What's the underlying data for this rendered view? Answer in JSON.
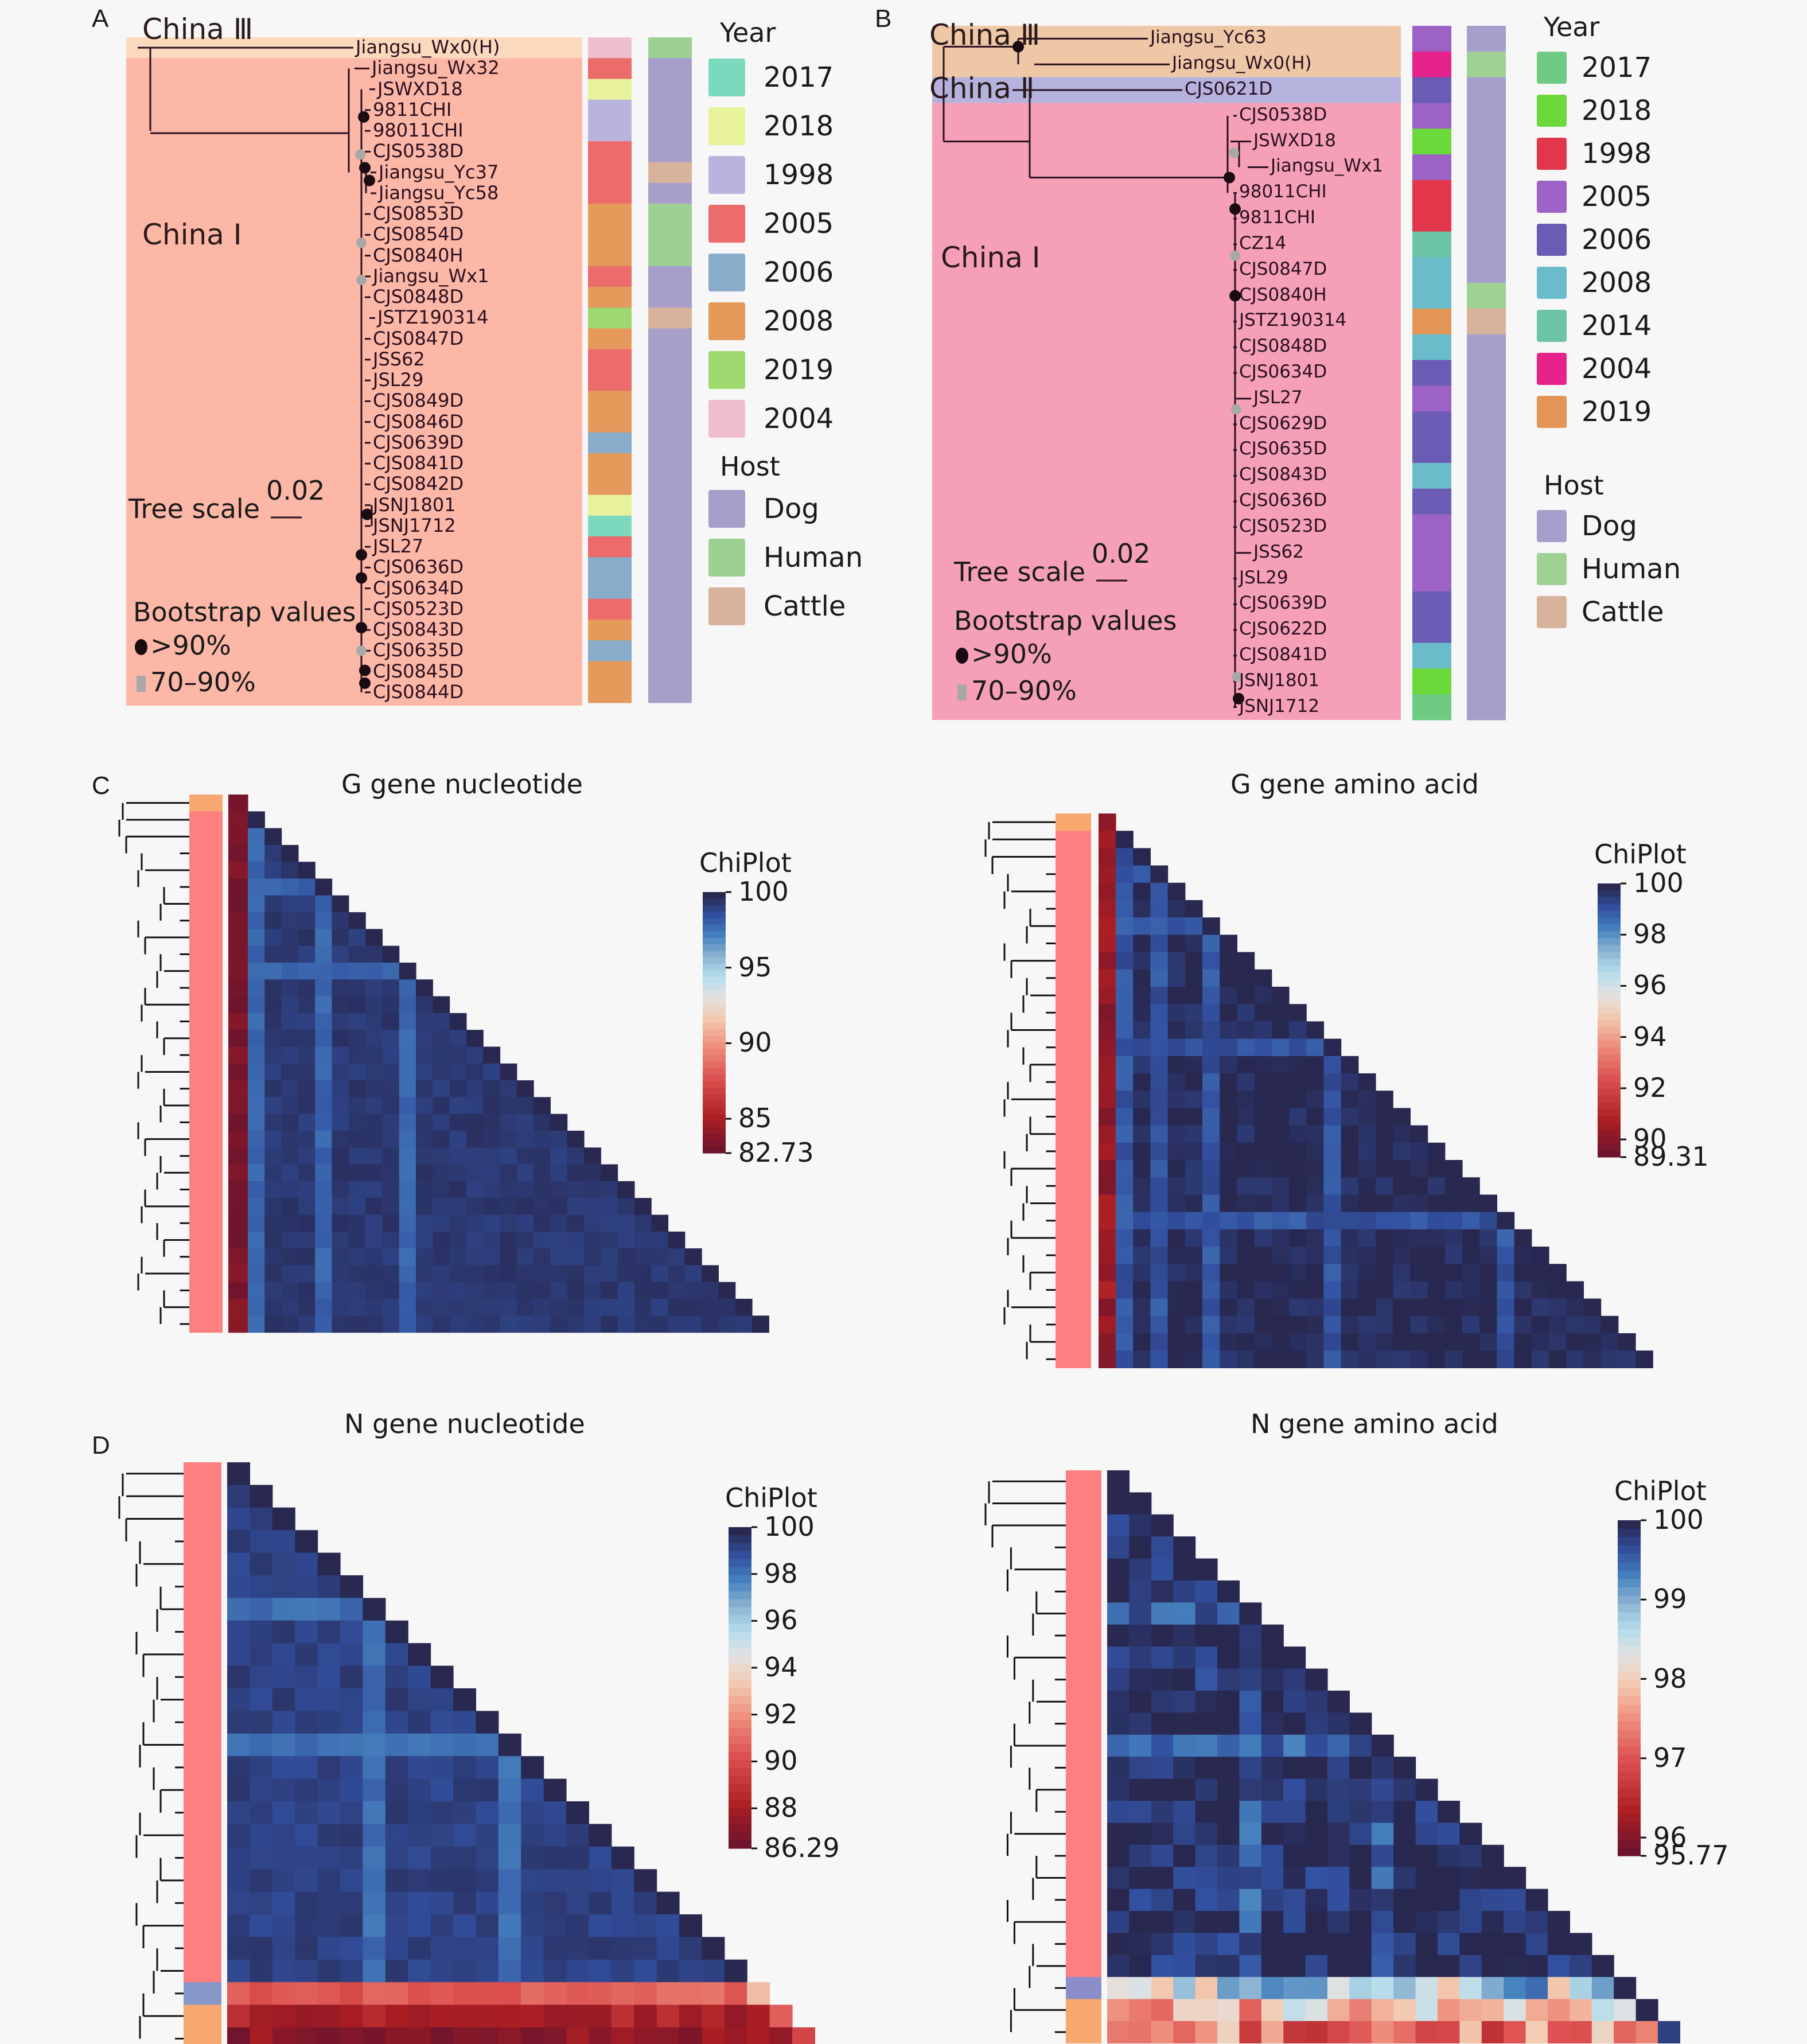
{
  "panels": {
    "A": {
      "letter": "A",
      "clades": {
        "c3": "China Ⅲ",
        "c1": "China Ⅰ"
      },
      "clade_colors": {
        "c3": "#fbd9bd",
        "c1": "#fcb7a6"
      },
      "tips": [
        {
          "name": "Jiangsu_Wx0(H)",
          "year": "2004",
          "host": "Human",
          "clade": "c3"
        },
        {
          "name": "Jiangsu_Wx32",
          "year": "2005",
          "host": "Dog",
          "clade": "c1"
        },
        {
          "name": "JSWXD18",
          "year": "2018",
          "host": "Dog",
          "clade": "c1"
        },
        {
          "name": "9811CHI",
          "year": "1998",
          "host": "Dog",
          "clade": "c1"
        },
        {
          "name": "98011CHI",
          "year": "1998",
          "host": "Dog",
          "clade": "c1"
        },
        {
          "name": "CJS0538D",
          "year": "2005",
          "host": "Dog",
          "clade": "c1"
        },
        {
          "name": "Jiangsu_Yc37",
          "year": "2005",
          "host": "Cattle",
          "clade": "c1"
        },
        {
          "name": "Jiangsu_Yc58",
          "year": "2005",
          "host": "Dog",
          "clade": "c1"
        },
        {
          "name": "CJS0853D",
          "year": "2008",
          "host": "Human",
          "clade": "c1"
        },
        {
          "name": "CJS0854D",
          "year": "2008",
          "host": "Human",
          "clade": "c1"
        },
        {
          "name": "CJS0840H",
          "year": "2008",
          "host": "Human",
          "clade": "c1"
        },
        {
          "name": "Jiangsu_Wx1",
          "year": "2005",
          "host": "Dog",
          "clade": "c1"
        },
        {
          "name": "CJS0848D",
          "year": "2008",
          "host": "Dog",
          "clade": "c1"
        },
        {
          "name": "JSTZ190314",
          "year": "2019",
          "host": "Cattle",
          "clade": "c1"
        },
        {
          "name": "CJS0847D",
          "year": "2008",
          "host": "Dog",
          "clade": "c1"
        },
        {
          "name": "JSS62",
          "year": "2005",
          "host": "Dog",
          "clade": "c1"
        },
        {
          "name": "JSL29",
          "year": "2005",
          "host": "Dog",
          "clade": "c1"
        },
        {
          "name": "CJS0849D",
          "year": "2008",
          "host": "Dog",
          "clade": "c1"
        },
        {
          "name": "CJS0846D",
          "year": "2008",
          "host": "Dog",
          "clade": "c1"
        },
        {
          "name": "CJS0639D",
          "year": "2006",
          "host": "Dog",
          "clade": "c1"
        },
        {
          "name": "CJS0841D",
          "year": "2008",
          "host": "Dog",
          "clade": "c1"
        },
        {
          "name": "CJS0842D",
          "year": "2008",
          "host": "Dog",
          "clade": "c1"
        },
        {
          "name": "JSNJ1801",
          "year": "2018",
          "host": "Dog",
          "clade": "c1"
        },
        {
          "name": "JSNJ1712",
          "year": "2017",
          "host": "Dog",
          "clade": "c1"
        },
        {
          "name": "JSL27",
          "year": "2005",
          "host": "Dog",
          "clade": "c1"
        },
        {
          "name": "CJS0636D",
          "year": "2006",
          "host": "Dog",
          "clade": "c1"
        },
        {
          "name": "CJS0634D",
          "year": "2006",
          "host": "Dog",
          "clade": "c1"
        },
        {
          "name": "CJS0523D",
          "year": "2005",
          "host": "Dog",
          "clade": "c1"
        },
        {
          "name": "CJS0843D",
          "year": "2008",
          "host": "Dog",
          "clade": "c1"
        },
        {
          "name": "CJS0635D",
          "year": "2006",
          "host": "Dog",
          "clade": "c1"
        },
        {
          "name": "CJS0845D",
          "year": "2008",
          "host": "Dog",
          "clade": "c1"
        },
        {
          "name": "CJS0844D",
          "year": "2008",
          "host": "Dog",
          "clade": "c1"
        }
      ],
      "tree_scale_label": "Tree scale",
      "tree_scale_value": "0.02",
      "bootstrap_title": "Bootstrap values",
      "bootstrap_high": ">90%",
      "bootstrap_mid": "70–90%",
      "legend_year_title": "Year",
      "legend_year": [
        {
          "label": "2017",
          "color": "#7dd9be"
        },
        {
          "label": "2018",
          "color": "#e7f29a"
        },
        {
          "label": "1998",
          "color": "#b9b4dd"
        },
        {
          "label": "2005",
          "color": "#ec6b6b"
        },
        {
          "label": "2006",
          "color": "#88acc9"
        },
        {
          "label": "2008",
          "color": "#e59a5c"
        },
        {
          "label": "2019",
          "color": "#9ed86f"
        },
        {
          "label": "2004",
          "color": "#f0bfcd"
        }
      ],
      "legend_host_title": "Host",
      "legend_host": [
        {
          "label": "Dog",
          "color": "#a79fca"
        },
        {
          "label": "Human",
          "color": "#9dd192"
        },
        {
          "label": "Cattle",
          "color": "#d8b29a"
        }
      ]
    },
    "B": {
      "letter": "B",
      "clades": {
        "c3": "China Ⅲ",
        "c2": "China Ⅱ",
        "c1": "China Ⅰ"
      },
      "clade_colors": {
        "c3": "#eec7a6",
        "c2": "#b5b3de",
        "c1": "#f6a0b8"
      },
      "tips": [
        {
          "name": "Jiangsu_Yc63",
          "year": "2005",
          "host": "Dog",
          "clade": "c3"
        },
        {
          "name": "Jiangsu_Wx0(H)",
          "year": "2004",
          "host": "Human",
          "clade": "c3"
        },
        {
          "name": "CJS0621D",
          "year": "2006",
          "host": "Dog",
          "clade": "c2"
        },
        {
          "name": "CJS0538D",
          "year": "2005",
          "host": "Dog",
          "clade": "c1"
        },
        {
          "name": "JSWXD18",
          "year": "2018",
          "host": "Dog",
          "clade": "c1"
        },
        {
          "name": "Jiangsu_Wx1",
          "year": "2005",
          "host": "Dog",
          "clade": "c1"
        },
        {
          "name": "98011CHI",
          "year": "1998",
          "host": "Dog",
          "clade": "c1"
        },
        {
          "name": "9811CHI",
          "year": "1998",
          "host": "Dog",
          "clade": "c1"
        },
        {
          "name": "CZ14",
          "year": "2014",
          "host": "Dog",
          "clade": "c1"
        },
        {
          "name": "CJS0847D",
          "year": "2008",
          "host": "Dog",
          "clade": "c1"
        },
        {
          "name": "CJS0840H",
          "year": "2008",
          "host": "Human",
          "clade": "c1"
        },
        {
          "name": "JSTZ190314",
          "year": "2019",
          "host": "Cattle",
          "clade": "c1"
        },
        {
          "name": "CJS0848D",
          "year": "2008",
          "host": "Dog",
          "clade": "c1"
        },
        {
          "name": "CJS0634D",
          "year": "2006",
          "host": "Dog",
          "clade": "c1"
        },
        {
          "name": "JSL27",
          "year": "2005",
          "host": "Dog",
          "clade": "c1"
        },
        {
          "name": "CJS0629D",
          "year": "2006",
          "host": "Dog",
          "clade": "c1"
        },
        {
          "name": "CJS0635D",
          "year": "2006",
          "host": "Dog",
          "clade": "c1"
        },
        {
          "name": "CJS0843D",
          "year": "2008",
          "host": "Dog",
          "clade": "c1"
        },
        {
          "name": "CJS0636D",
          "year": "2006",
          "host": "Dog",
          "clade": "c1"
        },
        {
          "name": "CJS0523D",
          "year": "2005",
          "host": "Dog",
          "clade": "c1"
        },
        {
          "name": "JSS62",
          "year": "2005",
          "host": "Dog",
          "clade": "c1"
        },
        {
          "name": "JSL29",
          "year": "2005",
          "host": "Dog",
          "clade": "c1"
        },
        {
          "name": "CJS0639D",
          "year": "2006",
          "host": "Dog",
          "clade": "c1"
        },
        {
          "name": "CJS0622D",
          "year": "2006",
          "host": "Dog",
          "clade": "c1"
        },
        {
          "name": "CJS0841D",
          "year": "2008",
          "host": "Dog",
          "clade": "c1"
        },
        {
          "name": "JSNJ1801",
          "year": "2018",
          "host": "Dog",
          "clade": "c1"
        },
        {
          "name": "JSNJ1712",
          "year": "2017",
          "host": "Dog",
          "clade": "c1"
        }
      ],
      "tree_scale_label": "Tree scale",
      "tree_scale_value": "0.02",
      "bootstrap_title": "Bootstrap values",
      "bootstrap_high": ">90%",
      "bootstrap_mid": "70–90%",
      "legend_year_title": "Year",
      "legend_year": [
        {
          "label": "2017",
          "color": "#6fcb83"
        },
        {
          "label": "2018",
          "color": "#6bd93b"
        },
        {
          "label": "1998",
          "color": "#e2364a"
        },
        {
          "label": "2005",
          "color": "#9c62c6"
        },
        {
          "label": "2006",
          "color": "#6a5cb4"
        },
        {
          "label": "2008",
          "color": "#6bbccb"
        },
        {
          "label": "2014",
          "color": "#6cc5a6"
        },
        {
          "label": "2004",
          "color": "#e6238a"
        },
        {
          "label": "2019",
          "color": "#e39558"
        }
      ],
      "legend_host_title": "Host",
      "legend_host": [
        {
          "label": "Dog",
          "color": "#a69fcb"
        },
        {
          "label": "Human",
          "color": "#9fd193"
        },
        {
          "label": "Cattle",
          "color": "#d8b39b"
        }
      ]
    },
    "C": {
      "letter": "C"
    },
    "D": {
      "letter": "D"
    }
  },
  "chart_data": [
    {
      "type": "heatmap",
      "id": "g-nt",
      "title": "G gene nucleotide",
      "legend_title": "ChiPlot",
      "range": [
        82.73,
        100
      ],
      "colorbar_ticks": [
        "100",
        "95",
        "90",
        "85",
        "82.73"
      ],
      "colorbar_tick_values": [
        100,
        95,
        90,
        85,
        82.73
      ],
      "n": 32,
      "outlier_rows": [
        0
      ],
      "outlier_value": 83.2,
      "group_colors": [
        "#f6a86e",
        "#fd8080"
      ],
      "row_groups": [
        0,
        1,
        1,
        1,
        1,
        1,
        1,
        1,
        1,
        1,
        1,
        1,
        1,
        1,
        1,
        1,
        1,
        1,
        1,
        1,
        1,
        1,
        1,
        1,
        1,
        1,
        1,
        1,
        1,
        1,
        1,
        1
      ],
      "lighter_columns": [
        1,
        5,
        10
      ],
      "base_value": 99.3,
      "layout": "lower-triangle-with-outlier-first"
    },
    {
      "type": "heatmap",
      "id": "g-aa",
      "title": "G gene amino acid",
      "legend_title": "ChiPlot",
      "range": [
        89.31,
        100
      ],
      "colorbar_ticks": [
        "100",
        "98",
        "96",
        "94",
        "92",
        "90",
        "89.31"
      ],
      "colorbar_tick_values": [
        100,
        98,
        96,
        94,
        92,
        90,
        89.31
      ],
      "n": 32,
      "outlier_rows": [
        0
      ],
      "outlier_value": 90.2,
      "group_colors": [
        "#f6a86e",
        "#fd8080"
      ],
      "row_groups": [
        0,
        1,
        1,
        1,
        1,
        1,
        1,
        1,
        1,
        1,
        1,
        1,
        1,
        1,
        1,
        1,
        1,
        1,
        1,
        1,
        1,
        1,
        1,
        1,
        1,
        1,
        1,
        1,
        1,
        1,
        1,
        1
      ],
      "lighter_columns": [
        1,
        3,
        6,
        13,
        23
      ],
      "base_value": 99.8,
      "layout": "lower-triangle-with-outlier-first"
    },
    {
      "type": "heatmap",
      "id": "n-nt",
      "title": "N gene nucleotide",
      "legend_title": "ChiPlot",
      "range": [
        86.29,
        100
      ],
      "colorbar_ticks": [
        "100",
        "98",
        "96",
        "94",
        "92",
        "90",
        "88",
        "86.29"
      ],
      "colorbar_tick_values": [
        100,
        98,
        96,
        94,
        92,
        90,
        88,
        86.29
      ],
      "n": 26,
      "group_colors": [
        "#fd8080",
        "#8696c9",
        "#f6a86e"
      ],
      "row_groups": [
        0,
        0,
        0,
        0,
        0,
        0,
        0,
        0,
        0,
        0,
        0,
        0,
        0,
        0,
        0,
        0,
        0,
        0,
        0,
        0,
        0,
        0,
        0,
        1,
        2,
        2
      ],
      "tail_values": [
        90.5,
        88.0,
        87.2
      ],
      "lighter_columns": [
        6,
        12
      ],
      "base_value": 99.2,
      "layout": "lower-triangle"
    },
    {
      "type": "heatmap",
      "id": "n-aa",
      "title": "N gene amino acid",
      "legend_title": "ChiPlot",
      "range": [
        95.77,
        100
      ],
      "colorbar_ticks": [
        "100",
        "99",
        "98",
        "97",
        "96",
        "95.77"
      ],
      "colorbar_tick_values": [
        100,
        99,
        98,
        97,
        96,
        95.77
      ],
      "n": 26,
      "group_colors": [
        "#fd8080",
        "#8d8ec9",
        "#f6a86e"
      ],
      "row_groups": [
        0,
        0,
        0,
        0,
        0,
        0,
        0,
        0,
        0,
        0,
        0,
        0,
        0,
        0,
        0,
        0,
        0,
        0,
        0,
        0,
        0,
        0,
        0,
        1,
        2,
        2
      ],
      "tail_values": [
        98.7,
        97.8,
        97.3
      ],
      "lighter_columns": [
        6,
        12
      ],
      "base_value": 99.8,
      "layout": "lower-triangle"
    }
  ]
}
